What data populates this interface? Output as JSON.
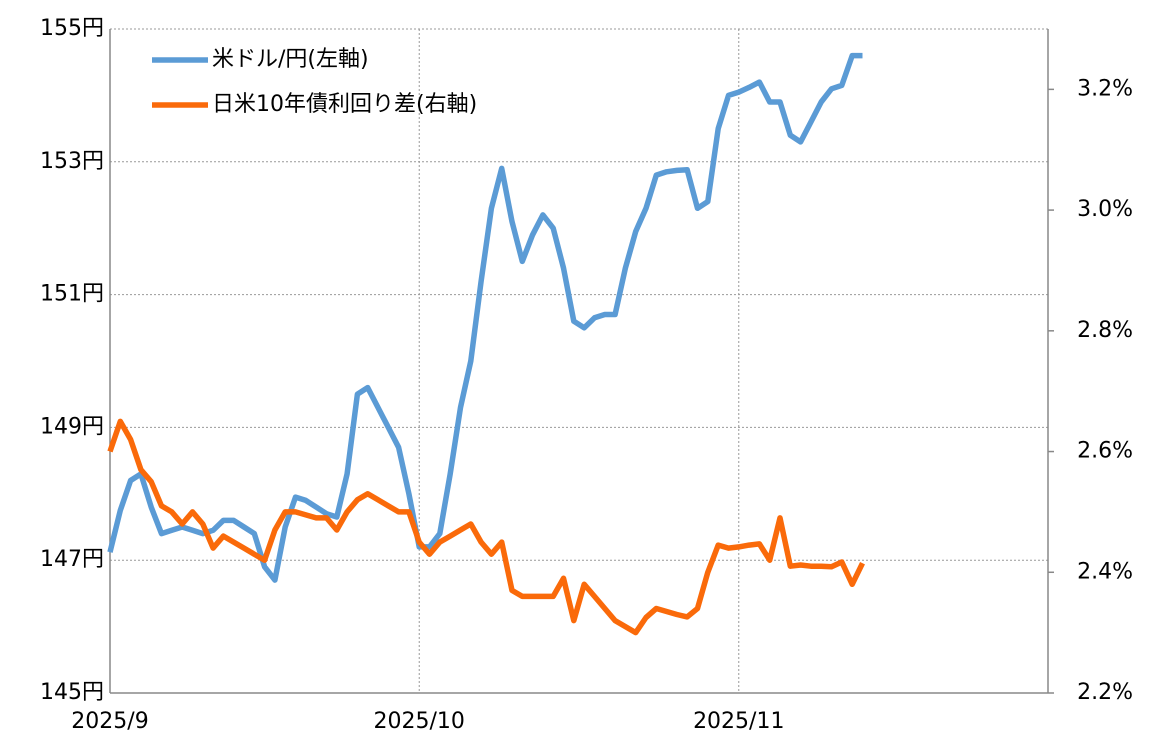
{
  "chart_data": {
    "type": "line",
    "categories": [
      "2025/9",
      null,
      null,
      null,
      null,
      null,
      null,
      null,
      null,
      null,
      null,
      null,
      null,
      null,
      null,
      null,
      null,
      null,
      null,
      null,
      null,
      null,
      null,
      null,
      null,
      null,
      null,
      null,
      null,
      null,
      "2025/10",
      null,
      null,
      null,
      null,
      null,
      null,
      null,
      null,
      null,
      null,
      null,
      null,
      null,
      null,
      null,
      null,
      null,
      null,
      null,
      null,
      null,
      null,
      null,
      null,
      null,
      null,
      null,
      null,
      null,
      null,
      "2025/11",
      null,
      null,
      null,
      null,
      null,
      null,
      null,
      null,
      null,
      null,
      null,
      null,
      null,
      null,
      null,
      null,
      null,
      null,
      null,
      null,
      null,
      null,
      null,
      null,
      null,
      null,
      null,
      null,
      null
    ],
    "series": [
      {
        "name": "米ドル/円(左軸)",
        "color": "#5b9bd5",
        "values": [
          147.12,
          147.75,
          148.2,
          148.3,
          147.8,
          147.4,
          147.45,
          147.5,
          147.45,
          147.4,
          147.45,
          147.6,
          147.6,
          147.5,
          147.4,
          146.9,
          146.7,
          147.5,
          147.95,
          147.9,
          147.8,
          147.7,
          147.65,
          148.3,
          149.5,
          149.6,
          149.3,
          149.0,
          148.7,
          148.0,
          147.2,
          147.2,
          147.4,
          148.3,
          149.3,
          150.0,
          151.2,
          152.3,
          152.9,
          152.1,
          151.5,
          151.9,
          152.2,
          152.0,
          151.4,
          150.6,
          150.5,
          150.65,
          150.7,
          150.7,
          151.4,
          151.95,
          152.3,
          152.8,
          152.85,
          152.87,
          152.88,
          152.3,
          152.4,
          153.5,
          154.0,
          154.05,
          154.12,
          154.2,
          153.9,
          153.9,
          153.4,
          153.3,
          153.6,
          153.9,
          154.1,
          154.15,
          154.6,
          154.6,
          null,
          null,
          null,
          null,
          null,
          null,
          null,
          null,
          null,
          null,
          null,
          null,
          null,
          null,
          null,
          null,
          null
        ]
      },
      {
        "name": "日米10年債利回り差(右軸)",
        "color": "#fa6a0a",
        "axis": "y2",
        "values": [
          2.6,
          2.65,
          2.62,
          2.57,
          2.55,
          2.51,
          2.5,
          2.48,
          2.5,
          2.48,
          2.44,
          2.46,
          2.45,
          2.44,
          2.43,
          2.42,
          2.47,
          2.5,
          2.5,
          2.495,
          2.49,
          2.49,
          2.47,
          2.5,
          2.52,
          2.53,
          2.52,
          2.51,
          2.5,
          2.5,
          2.45,
          2.43,
          2.45,
          2.46,
          2.47,
          2.48,
          2.45,
          2.43,
          2.45,
          2.37,
          2.36,
          2.36,
          2.36,
          2.36,
          2.39,
          2.32,
          2.38,
          2.36,
          2.34,
          2.32,
          2.31,
          2.3,
          2.325,
          2.34,
          2.335,
          2.33,
          2.326,
          2.34,
          2.4,
          2.445,
          2.44,
          2.442,
          2.445,
          2.447,
          2.42,
          2.49,
          2.41,
          2.412,
          2.41,
          2.41,
          2.409,
          2.417,
          2.38,
          2.415,
          null,
          null,
          null,
          null,
          null,
          null,
          null,
          null,
          null,
          null,
          null,
          null,
          null,
          null,
          null,
          null,
          null
        ]
      }
    ],
    "ylim": [
      145,
      155
    ],
    "yticks": [
      {
        "value": 145,
        "label": "145円"
      },
      {
        "value": 147,
        "label": "147円"
      },
      {
        "value": 149,
        "label": "149円"
      },
      {
        "value": 151,
        "label": "151円"
      },
      {
        "value": 153,
        "label": "153円"
      },
      {
        "value": 155,
        "label": "155円"
      }
    ],
    "y2lim": [
      2.2,
      3.3
    ],
    "y2ticks": [
      {
        "value": 2.2,
        "label": "2.2%"
      },
      {
        "value": 2.4,
        "label": "2.4%"
      },
      {
        "value": 2.6,
        "label": "2.6%"
      },
      {
        "value": 2.8,
        "label": "2.8%"
      },
      {
        "value": 3.0,
        "label": "3.0%"
      },
      {
        "value": 3.2,
        "label": "3.2%"
      }
    ],
    "grid": true,
    "legend": "top-left"
  }
}
